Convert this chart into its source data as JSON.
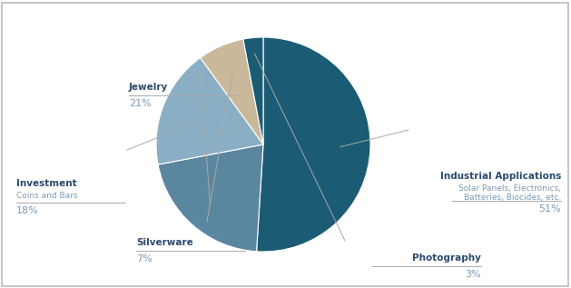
{
  "slices": [
    {
      "label": "Industrial Applications",
      "sublabel": "Solar Panels, Electronics,\nBatteries, Biocides, etc.",
      "pct": "51%",
      "value": 51,
      "color": "#1b5b74"
    },
    {
      "label": "Jewelry",
      "sublabel": "",
      "pct": "21%",
      "value": 21,
      "color": "#5b86a0"
    },
    {
      "label": "Investment",
      "sublabel": "Coins and Bars",
      "pct": "18%",
      "value": 18,
      "color": "#8aafc4"
    },
    {
      "label": "Silverware",
      "sublabel": "",
      "pct": "7%",
      "value": 7,
      "color": "#c9b99a"
    },
    {
      "label": "Photography",
      "sublabel": "",
      "pct": "3%",
      "value": 3,
      "color": "#1b5b74"
    }
  ],
  "background_color": "#ffffff",
  "border_color": "#bbbbbb",
  "label_bold_color": "#2c4a6e",
  "label_sub_color": "#7a9ab5",
  "pct_color": "#7a9ab5",
  "line_color": "#aaaaaa",
  "startangle": 90,
  "counterclock": false
}
